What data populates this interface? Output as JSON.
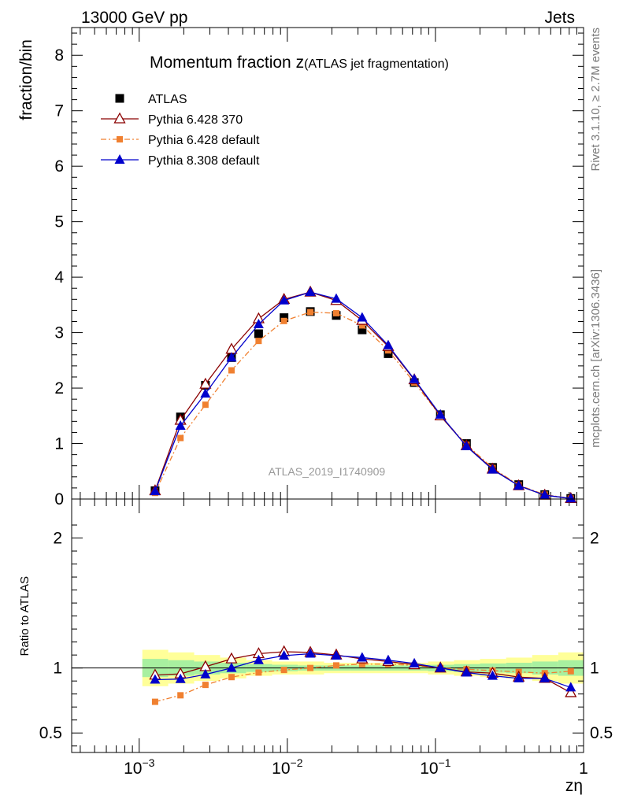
{
  "header": {
    "left": "13000 GeV pp",
    "right": "Jets"
  },
  "side_text": {
    "rivet": "Rivet 3.1.10, ≥ 2.7M events",
    "mcplots": "mcplots.cern.ch [arXiv:1306.3436]"
  },
  "chart_data": [
    {
      "type": "scatter",
      "title": "Momentum fraction z",
      "title_sub": "(ATLAS jet fragmentation)",
      "ylabel": "fraction/bin",
      "ylim": [
        0,
        8.5
      ],
      "y_ticks": [
        "0",
        "1",
        "2",
        "3",
        "4",
        "5",
        "6",
        "7",
        "8"
      ],
      "xscale": "log",
      "xlim": [
        0.00035,
        1
      ],
      "watermark": "ATLAS_2019_I1740909",
      "legend_position": "top-left",
      "x": [
        0.00128,
        0.0019,
        0.0028,
        0.0042,
        0.0064,
        0.0095,
        0.0143,
        0.0214,
        0.032,
        0.048,
        0.072,
        0.108,
        0.162,
        0.243,
        0.365,
        0.547,
        0.82
      ],
      "series": [
        {
          "name": "ATLAS",
          "color": "#000000",
          "marker": "square-filled",
          "values": [
            0.15,
            1.48,
            2.05,
            2.55,
            2.98,
            3.27,
            3.38,
            3.31,
            3.05,
            2.62,
            2.1,
            1.52,
            1.0,
            0.57,
            0.26,
            0.08,
            0.01
          ]
        },
        {
          "name": "Pythia 6.428 370",
          "color": "#8b0000",
          "marker": "triangle-open",
          "values": [
            0.15,
            1.42,
            2.07,
            2.7,
            3.25,
            3.6,
            3.73,
            3.58,
            3.22,
            2.75,
            2.15,
            1.5,
            0.96,
            0.54,
            0.24,
            0.07,
            0.01
          ]
        },
        {
          "name": "Pythia 6.428 default",
          "color": "#f08030",
          "marker": "square-small",
          "dash": "dash-dot",
          "values": [
            0.11,
            1.1,
            1.7,
            2.32,
            2.85,
            3.21,
            3.37,
            3.35,
            3.13,
            2.68,
            2.1,
            1.5,
            0.98,
            0.56,
            0.25,
            0.08,
            0.01
          ]
        },
        {
          "name": "Pythia 8.308 default",
          "color": "#0000cc",
          "marker": "triangle-filled",
          "values": [
            0.14,
            1.32,
            1.9,
            2.55,
            3.15,
            3.58,
            3.73,
            3.61,
            3.27,
            2.77,
            2.16,
            1.52,
            0.95,
            0.53,
            0.24,
            0.07,
            0.01
          ]
        }
      ]
    },
    {
      "type": "scatter",
      "ylabel": "Ratio to ATLAS",
      "xlabel": "zη",
      "xscale": "log",
      "xlim": [
        0.00035,
        1
      ],
      "ylim": [
        0.35,
        2.3
      ],
      "y_ticks": [
        {
          "value": 0.5,
          "label": "0.5"
        },
        {
          "value": 1,
          "label": "1"
        },
        {
          "value": 2,
          "label": "2"
        }
      ],
      "x_ticks": [
        {
          "value": 0.001,
          "base": "10",
          "exp": "−3"
        },
        {
          "value": 0.01,
          "base": "10",
          "exp": "−2"
        },
        {
          "value": 0.1,
          "base": "10",
          "exp": "−1"
        },
        {
          "value": 1,
          "base": "1",
          "exp": ""
        }
      ],
      "band_colors": {
        "outer": "#ffff99",
        "inner": "#a8f0a0"
      },
      "x_edges": [
        0.00105,
        0.00157,
        0.00235,
        0.00352,
        0.00528,
        0.0079,
        0.0118,
        0.0177,
        0.0265,
        0.0397,
        0.0595,
        0.0891,
        0.1335,
        0.2,
        0.3,
        0.45,
        0.675,
        1.0
      ],
      "band_outer": [
        0.14,
        0.12,
        0.1,
        0.08,
        0.06,
        0.05,
        0.05,
        0.04,
        0.04,
        0.04,
        0.04,
        0.05,
        0.06,
        0.07,
        0.08,
        0.1,
        0.12
      ],
      "band_inner": [
        0.07,
        0.06,
        0.05,
        0.04,
        0.03,
        0.025,
        0.02,
        0.02,
        0.02,
        0.02,
        0.02,
        0.025,
        0.03,
        0.035,
        0.04,
        0.05,
        0.06
      ],
      "series": [
        {
          "name": "Pythia 6.428 370",
          "color": "#8b0000",
          "marker": "triangle-open",
          "values": [
            0.945,
            0.955,
            1.01,
            1.07,
            1.11,
            1.125,
            1.12,
            1.1,
            1.07,
            1.05,
            1.025,
            1.0,
            0.97,
            0.96,
            0.93,
            0.92,
            0.81
          ]
        },
        {
          "name": "Pythia 6.428 default",
          "color": "#f08030",
          "marker": "square-small",
          "dash": "dash-dot",
          "values": [
            0.74,
            0.79,
            0.87,
            0.93,
            0.965,
            0.985,
            1.0,
            1.02,
            1.03,
            1.03,
            1.02,
            1.0,
            0.99,
            0.98,
            0.97,
            0.96,
            0.975
          ]
        },
        {
          "name": "Pythia 8.308 default",
          "color": "#0000cc",
          "marker": "triangle-filled",
          "values": [
            0.91,
            0.915,
            0.95,
            1.0,
            1.06,
            1.095,
            1.11,
            1.095,
            1.08,
            1.06,
            1.035,
            1.0,
            0.965,
            0.94,
            0.92,
            0.92,
            0.85
          ]
        }
      ]
    }
  ]
}
